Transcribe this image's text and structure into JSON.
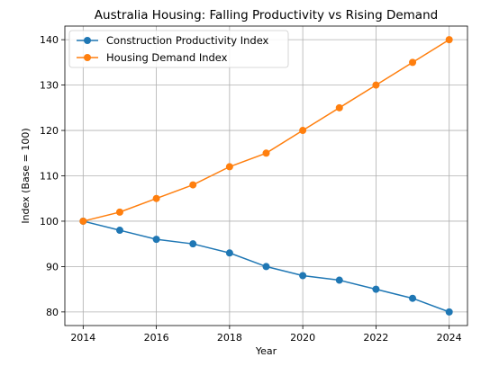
{
  "chart_data": {
    "type": "line",
    "title": "Australia Housing: Falling Productivity vs Rising Demand",
    "xlabel": "Year",
    "ylabel": "Index (Base = 100)",
    "x": [
      2014,
      2015,
      2016,
      2017,
      2018,
      2019,
      2020,
      2021,
      2022,
      2023,
      2024
    ],
    "xticks": [
      2014,
      2016,
      2018,
      2020,
      2022,
      2024
    ],
    "yticks": [
      80,
      90,
      100,
      110,
      120,
      130,
      140
    ],
    "xlim": [
      2013.5,
      2024.5
    ],
    "ylim": [
      77,
      143
    ],
    "grid": true,
    "legend_position": "top-left",
    "series": [
      {
        "name": "Construction Productivity Index",
        "color": "#1f77b4",
        "marker": "circle",
        "values": [
          100,
          98,
          96,
          95,
          93,
          90,
          88,
          87,
          85,
          83,
          80
        ]
      },
      {
        "name": "Housing Demand Index",
        "color": "#ff7f0e",
        "marker": "circle",
        "values": [
          100,
          102,
          105,
          108,
          112,
          115,
          120,
          125,
          130,
          135,
          140
        ]
      }
    ]
  }
}
